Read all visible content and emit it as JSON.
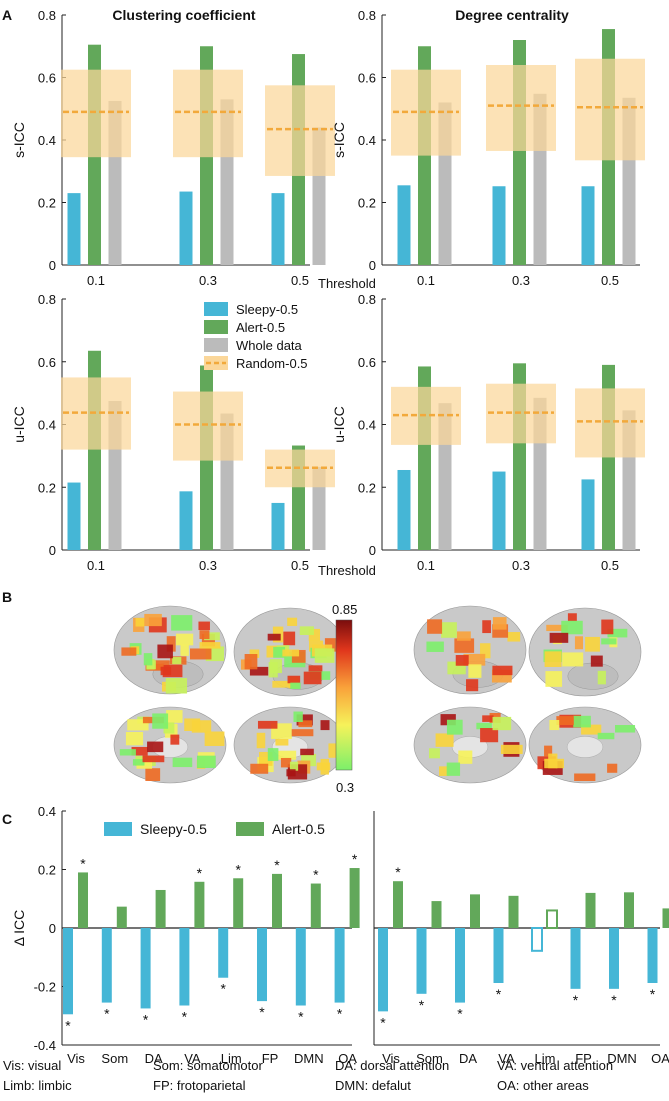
{
  "panel_labels": {
    "A": "A",
    "B": "B",
    "C": "C"
  },
  "colors": {
    "sleepy": "#45b6d6",
    "alert": "#62a85a",
    "whole": "#bbbbbb",
    "random": "#f2a93b",
    "random_band": "#fbd79a"
  },
  "panel_A": {
    "threshold_label": "Threshold",
    "legend": [
      {
        "key": "sleepy",
        "label": "Sleepy-0.5"
      },
      {
        "key": "alert",
        "label": "Alert-0.5"
      },
      {
        "key": "whole",
        "label": "Whole data"
      },
      {
        "key": "random",
        "label": "Random-0.5"
      }
    ]
  },
  "panel_B": {
    "colorbar_max": "0.85",
    "colorbar_min": "0.3"
  },
  "panel_C": {
    "legend": [
      {
        "key": "sleepy",
        "label": "Sleepy-0.5"
      },
      {
        "key": "alert",
        "label": "Alert-0.5"
      }
    ],
    "abbreviations": [
      "Vis: visual",
      "Som: somatomotor",
      "DA: dorsal attention",
      "VA: ventral attention",
      "Limb: limbic",
      "FP: frotoparietal",
      "DMN: defalut",
      "OA: other areas"
    ]
  },
  "chart_data": [
    {
      "id": "A1",
      "type": "bar",
      "title": "Clustering coefficient",
      "ylabel": "s-ICC",
      "xlabel": "",
      "categories": [
        "0.1",
        "0.3",
        "0.5"
      ],
      "ylim": [
        0,
        0.8
      ],
      "yticks": [
        "0",
        "0.2",
        "0.4",
        "0.6",
        "0.8"
      ],
      "series": [
        {
          "name": "Sleepy-0.5",
          "values": [
            0.23,
            0.235,
            0.23
          ]
        },
        {
          "name": "Alert-0.5",
          "values": [
            0.705,
            0.7,
            0.675
          ]
        },
        {
          "name": "Whole data",
          "values": [
            0.525,
            0.53,
            0.44
          ]
        }
      ],
      "random": {
        "name": "Random-0.5",
        "mean": [
          0.49,
          0.49,
          0.435
        ],
        "low": [
          0.345,
          0.345,
          0.285
        ],
        "high": [
          0.625,
          0.625,
          0.575
        ]
      }
    },
    {
      "id": "A2",
      "type": "bar",
      "title": "Degree centrality",
      "ylabel": "s-ICC",
      "xlabel": "",
      "categories": [
        "0.1",
        "0.3",
        "0.5"
      ],
      "ylim": [
        0,
        0.8
      ],
      "yticks": [
        "0",
        "0.2",
        "0.4",
        "0.6",
        "0.8"
      ],
      "series": [
        {
          "name": "Sleepy-0.5",
          "values": [
            0.255,
            0.252,
            0.252
          ]
        },
        {
          "name": "Alert-0.5",
          "values": [
            0.7,
            0.72,
            0.755
          ]
        },
        {
          "name": "Whole data",
          "values": [
            0.52,
            0.548,
            0.535
          ]
        }
      ],
      "random": {
        "name": "Random-0.5",
        "mean": [
          0.49,
          0.51,
          0.505
        ],
        "low": [
          0.35,
          0.365,
          0.335
        ],
        "high": [
          0.625,
          0.64,
          0.66
        ]
      }
    },
    {
      "id": "A3",
      "type": "bar",
      "title": "",
      "ylabel": "u-ICC",
      "xlabel": "Threshold",
      "categories": [
        "0.1",
        "0.3",
        "0.5"
      ],
      "ylim": [
        0,
        0.8
      ],
      "yticks": [
        "0",
        "0.2",
        "0.4",
        "0.6",
        "0.8"
      ],
      "series": [
        {
          "name": "Sleepy-0.5",
          "values": [
            0.215,
            0.187,
            0.15
          ]
        },
        {
          "name": "Alert-0.5",
          "values": [
            0.635,
            0.588,
            0.333
          ]
        },
        {
          "name": "Whole data",
          "values": [
            0.475,
            0.435,
            0.265
          ]
        }
      ],
      "random": {
        "name": "Random-0.5",
        "mean": [
          0.438,
          0.4,
          0.262
        ],
        "low": [
          0.32,
          0.285,
          0.2
        ],
        "high": [
          0.55,
          0.505,
          0.32
        ]
      }
    },
    {
      "id": "A4",
      "type": "bar",
      "title": "",
      "ylabel": "u-ICC",
      "xlabel": "",
      "categories": [
        "0.1",
        "0.3",
        "0.5"
      ],
      "ylim": [
        0,
        0.8
      ],
      "yticks": [
        "0",
        "0.2",
        "0.4",
        "0.6",
        "0.8"
      ],
      "series": [
        {
          "name": "Sleepy-0.5",
          "values": [
            0.255,
            0.25,
            0.225
          ]
        },
        {
          "name": "Alert-0.5",
          "values": [
            0.585,
            0.595,
            0.59
          ]
        },
        {
          "name": "Whole data",
          "values": [
            0.468,
            0.485,
            0.445
          ]
        }
      ],
      "random": {
        "name": "Random-0.5",
        "mean": [
          0.43,
          0.438,
          0.41
        ],
        "low": [
          0.335,
          0.34,
          0.295
        ],
        "high": [
          0.52,
          0.53,
          0.515
        ]
      }
    },
    {
      "id": "C1",
      "type": "bar",
      "title": "",
      "ylabel": "Δ ICC",
      "xlabel": "",
      "categories": [
        "Vis",
        "Som",
        "DA",
        "VA",
        "Lim",
        "FP",
        "DMN",
        "OA"
      ],
      "ylim": [
        -0.4,
        0.4
      ],
      "yticks": [
        "-0.4",
        "-0.2",
        "0",
        "0.2",
        "0.4"
      ],
      "series": [
        {
          "name": "Sleepy-0.5",
          "values": [
            -0.295,
            -0.255,
            -0.275,
            -0.265,
            -0.17,
            -0.25,
            -0.265,
            -0.255
          ],
          "sig": [
            true,
            true,
            true,
            true,
            true,
            true,
            true,
            true
          ],
          "hollow": [
            false,
            false,
            false,
            false,
            false,
            false,
            false,
            false
          ]
        },
        {
          "name": "Alert-0.5",
          "values": [
            0.19,
            0.073,
            0.13,
            0.158,
            0.17,
            0.185,
            0.152,
            0.205
          ],
          "sig": [
            true,
            false,
            false,
            true,
            true,
            true,
            true,
            true
          ],
          "hollow": [
            false,
            false,
            false,
            false,
            false,
            false,
            false,
            false
          ]
        }
      ]
    },
    {
      "id": "C2",
      "type": "bar",
      "title": "",
      "ylabel": "",
      "xlabel": "",
      "categories": [
        "Vis",
        "Som",
        "DA",
        "VA",
        "Lim",
        "FP",
        "DMN",
        "OA"
      ],
      "ylim": [
        -0.4,
        0.4
      ],
      "yticks": [],
      "series": [
        {
          "name": "Sleepy-0.5",
          "values": [
            -0.285,
            -0.225,
            -0.255,
            -0.188,
            -0.078,
            -0.208,
            -0.208,
            -0.188
          ],
          "sig": [
            true,
            true,
            true,
            true,
            false,
            true,
            true,
            true
          ],
          "hollow": [
            false,
            false,
            false,
            false,
            true,
            false,
            false,
            false
          ]
        },
        {
          "name": "Alert-0.5",
          "values": [
            0.16,
            0.092,
            0.115,
            0.11,
            0.06,
            0.12,
            0.122,
            0.067
          ],
          "sig": [
            true,
            false,
            false,
            false,
            false,
            false,
            false,
            false
          ],
          "hollow": [
            false,
            false,
            false,
            false,
            true,
            false,
            false,
            false
          ]
        }
      ]
    }
  ]
}
